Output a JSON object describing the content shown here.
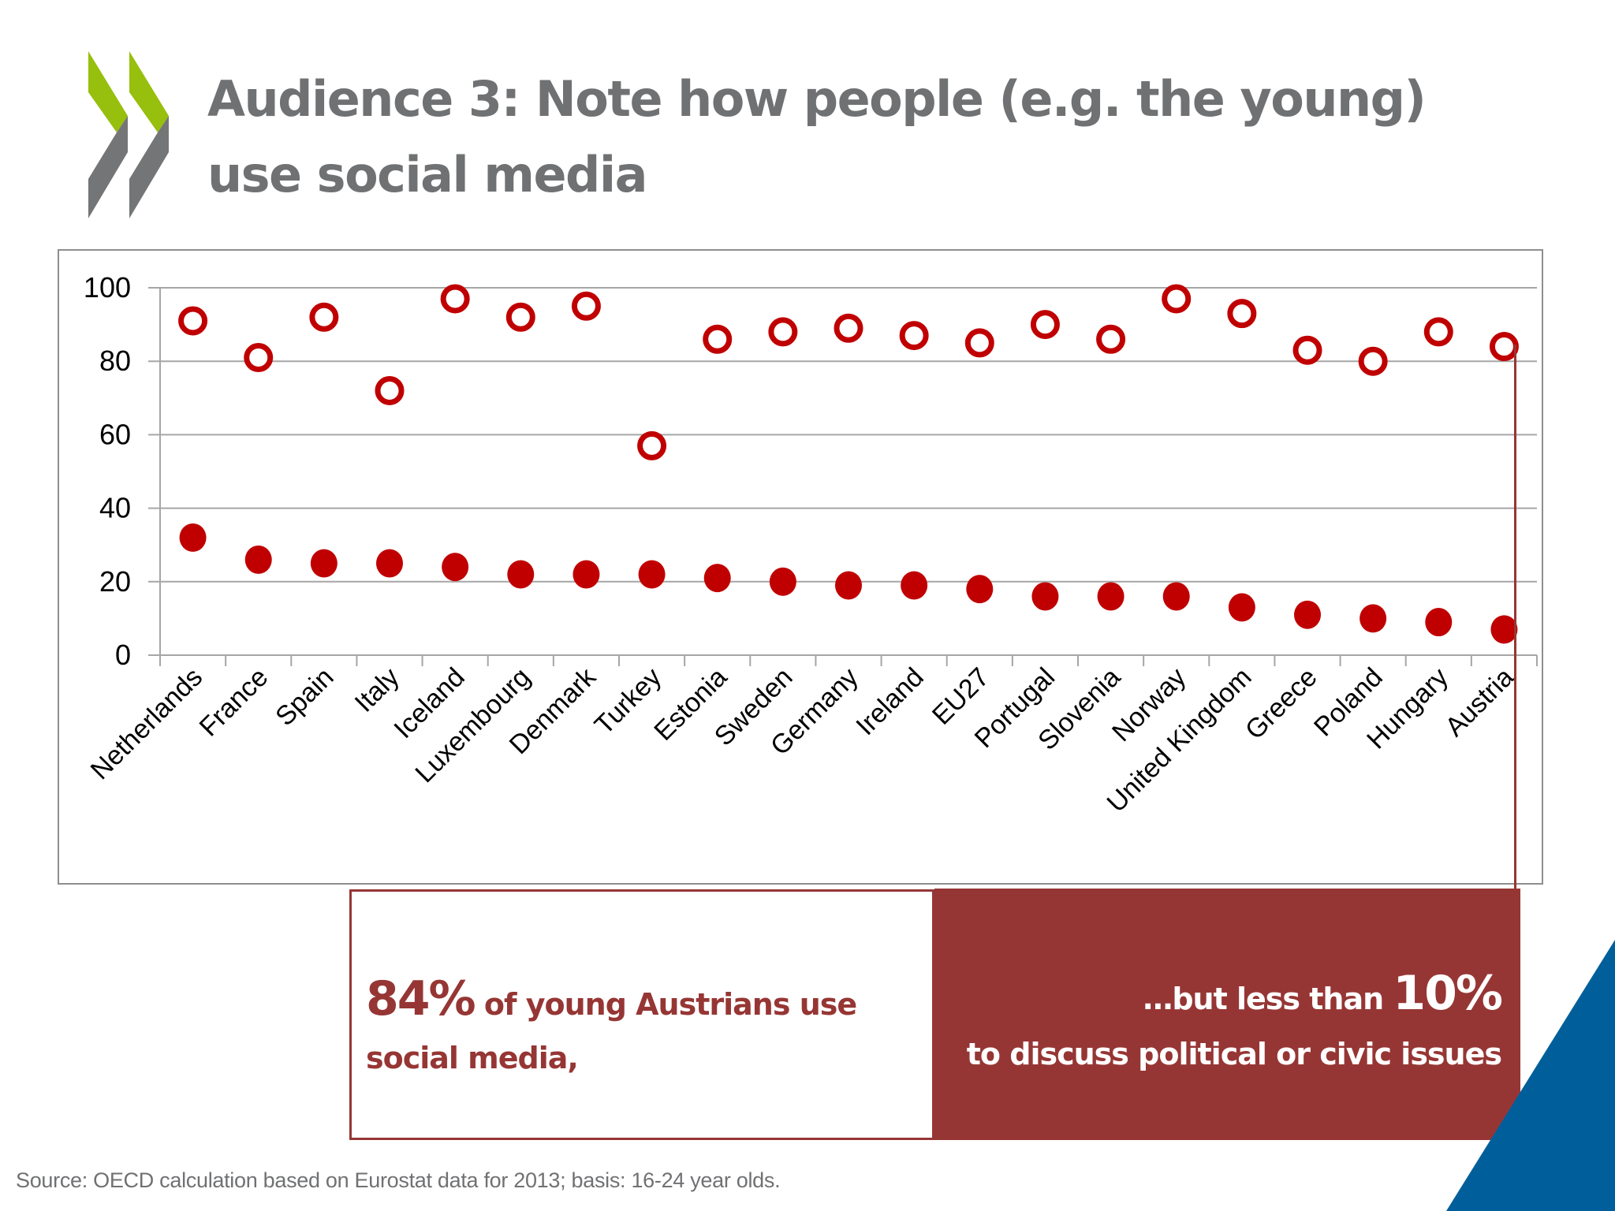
{
  "slide": {
    "title_line1": "Audience 3: Note how people (e.g. the young)",
    "title_line2": "use social media",
    "source": "Source: OECD calculation based on Eurostat data for 2013; basis: 16-24 year olds."
  },
  "callouts": {
    "left": {
      "big": "84%",
      "rest_line1": " of young Austrians use",
      "line2": "social media,"
    },
    "right": {
      "line1": "…but less than ",
      "big": "10%",
      "line2": "to discuss political or civic issues"
    }
  },
  "colors": {
    "marker": "#c00000",
    "accent_dark_red": "#963634",
    "title_gray": "#707173",
    "logo_green": "#97bf0d",
    "logo_gray": "#747576",
    "corner_blue": "#005f9b",
    "grid": "#a6a6a6"
  },
  "chart_data": {
    "type": "scatter",
    "title": "",
    "xlabel": "",
    "ylabel": "",
    "ylim": [
      0,
      100
    ],
    "yticks": [
      "0",
      "20",
      "40",
      "60",
      "80",
      "100"
    ],
    "grid": true,
    "legend": "none",
    "categories": [
      "Netherlands",
      "France",
      "Spain",
      "Italy",
      "Iceland",
      "Luxembourg",
      "Denmark",
      "Turkey",
      "Estonia",
      "Sweden",
      "Germany",
      "Ireland",
      "EU27",
      "Portugal",
      "Slovenia",
      "Norway",
      "United Kingdom",
      "Greece",
      "Poland",
      "Hungary",
      "Austria"
    ],
    "series": [
      {
        "name": "Use social media",
        "marker": "hollow-circle",
        "values": [
          91,
          81,
          92,
          72,
          97,
          92,
          95,
          57,
          86,
          88,
          89,
          87,
          85,
          90,
          86,
          97,
          93,
          83,
          80,
          88,
          84
        ]
      },
      {
        "name": "Discuss political or civic issues",
        "marker": "filled-circle",
        "values": [
          32,
          26,
          25,
          25,
          24,
          22,
          22,
          22,
          21,
          20,
          19,
          19,
          18,
          16,
          16,
          16,
          13,
          11,
          10,
          9,
          7
        ]
      }
    ],
    "highlight": "Austria"
  }
}
